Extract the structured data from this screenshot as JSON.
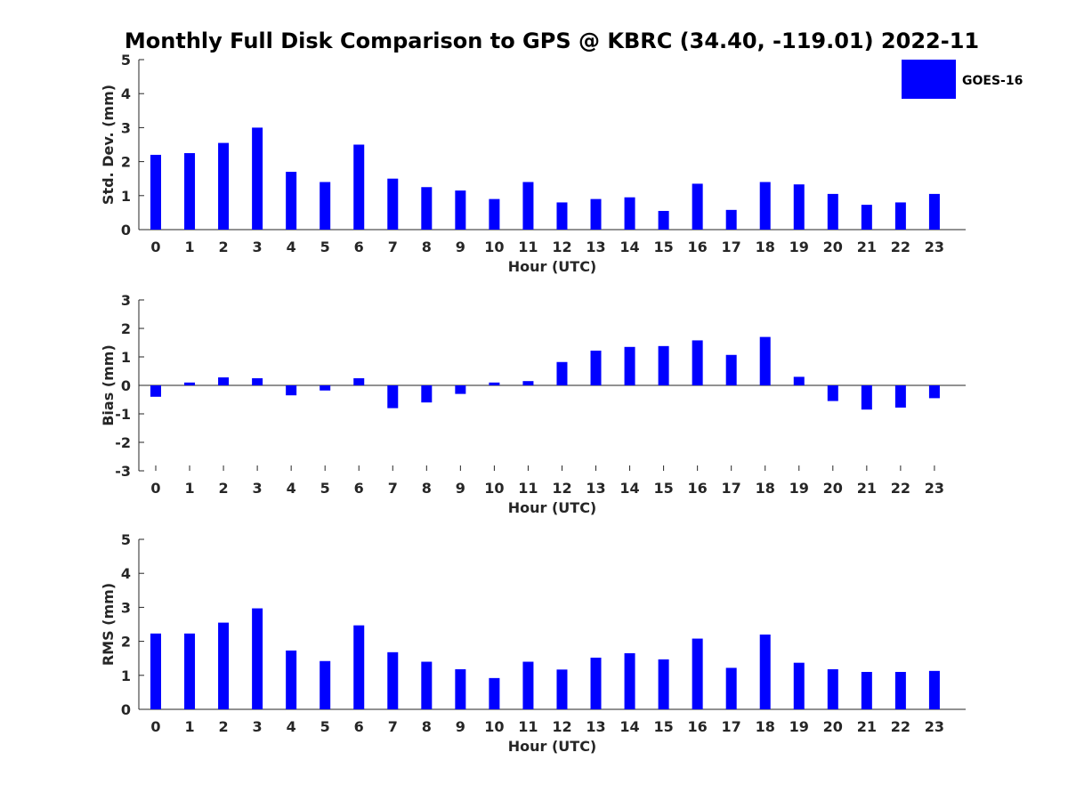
{
  "chart_data": {
    "title": "Monthly Full Disk Comparison to GPS @ KBRC (34.40, -119.01) 2022-11",
    "legend": {
      "label": "GOES-16",
      "color": "#0000ff",
      "position": "top-right"
    },
    "panels": [
      {
        "type": "bar",
        "xlabel": "Hour (UTC)",
        "ylabel": "Std. Dev. (mm)",
        "ylim": [
          0,
          5
        ],
        "yticks": [
          "0",
          "1",
          "2",
          "3",
          "4",
          "5"
        ],
        "categories": [
          "0",
          "1",
          "2",
          "3",
          "4",
          "5",
          "6",
          "7",
          "8",
          "9",
          "10",
          "11",
          "12",
          "13",
          "14",
          "15",
          "16",
          "17",
          "18",
          "19",
          "20",
          "21",
          "22",
          "23"
        ],
        "values": [
          2.2,
          2.25,
          2.55,
          3.0,
          1.7,
          1.4,
          2.5,
          1.5,
          1.25,
          1.15,
          0.9,
          1.4,
          0.8,
          0.9,
          0.95,
          0.55,
          1.35,
          0.58,
          1.4,
          1.33,
          1.05,
          0.73,
          0.8,
          1.05
        ]
      },
      {
        "type": "bar",
        "xlabel": "Hour (UTC)",
        "ylabel": "Bias (mm)",
        "ylim": [
          -3,
          3
        ],
        "yticks": [
          "-3",
          "-2",
          "-1",
          "0",
          "1",
          "2",
          "3"
        ],
        "categories": [
          "0",
          "1",
          "2",
          "3",
          "4",
          "5",
          "6",
          "7",
          "8",
          "9",
          "10",
          "11",
          "12",
          "13",
          "14",
          "15",
          "16",
          "17",
          "18",
          "19",
          "20",
          "21",
          "22",
          "23"
        ],
        "values": [
          -0.4,
          0.1,
          0.28,
          0.25,
          -0.35,
          -0.18,
          0.25,
          -0.8,
          -0.6,
          -0.3,
          0.1,
          0.15,
          0.82,
          1.22,
          1.35,
          1.38,
          1.58,
          1.07,
          1.7,
          0.3,
          -0.55,
          -0.85,
          -0.78,
          -0.45
        ]
      },
      {
        "type": "bar",
        "xlabel": "Hour (UTC)",
        "ylabel": "RMS (mm)",
        "ylim": [
          0,
          5
        ],
        "yticks": [
          "0",
          "1",
          "2",
          "3",
          "4",
          "5"
        ],
        "categories": [
          "0",
          "1",
          "2",
          "3",
          "4",
          "5",
          "6",
          "7",
          "8",
          "9",
          "10",
          "11",
          "12",
          "13",
          "14",
          "15",
          "16",
          "17",
          "18",
          "19",
          "20",
          "21",
          "22",
          "23"
        ],
        "values": [
          2.23,
          2.23,
          2.55,
          2.97,
          1.73,
          1.42,
          2.47,
          1.68,
          1.4,
          1.18,
          0.92,
          1.4,
          1.17,
          1.52,
          1.65,
          1.47,
          2.08,
          1.22,
          2.2,
          1.37,
          1.18,
          1.1,
          1.1,
          1.13
        ]
      }
    ]
  }
}
